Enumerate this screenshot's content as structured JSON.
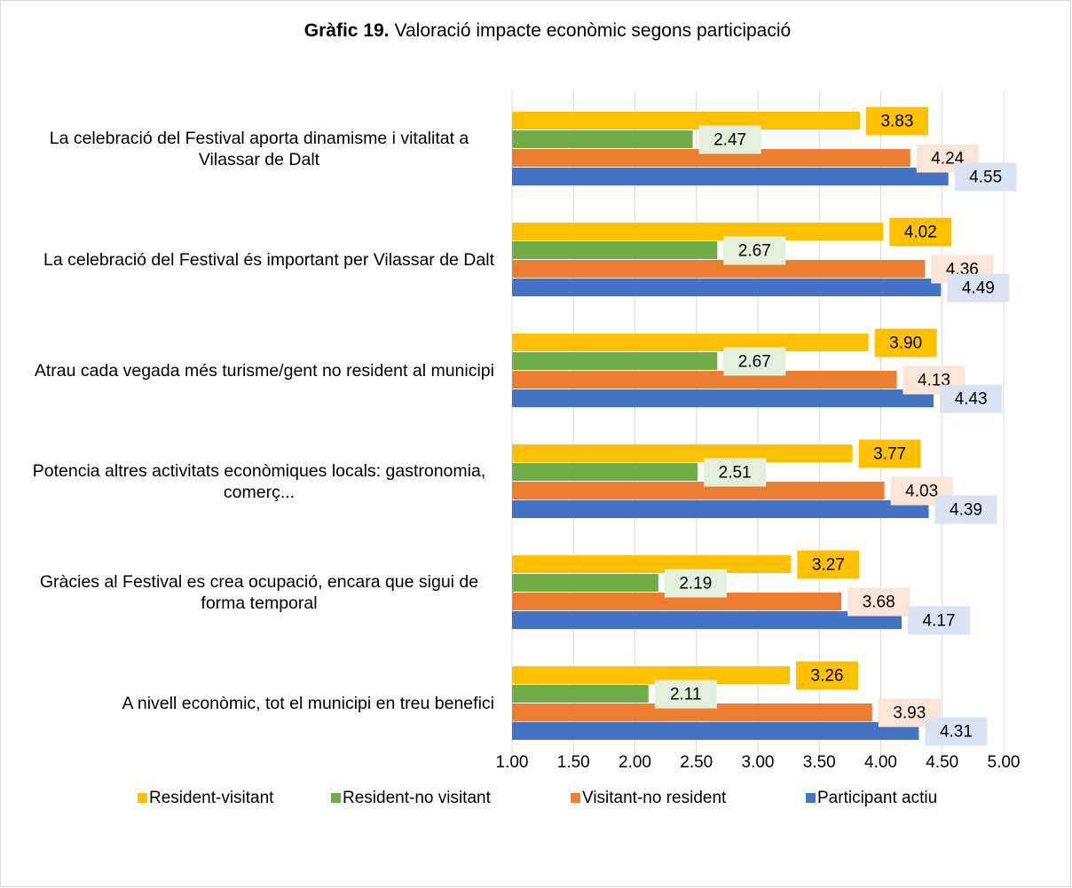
{
  "chart_data": {
    "type": "bar",
    "orientation": "horizontal",
    "title_label": "Gràfic 19.",
    "title": "Valoració impacte econòmic segons participació",
    "categories": [
      "La celebració del Festival aporta dinamisme i vitalitat a Vilassar de Dalt",
      "La celebració del Festival és important per Vilassar de Dalt",
      "Atrau cada vegada més turisme/gent no resident al municipi",
      "Potencia altres activitats econòmiques locals: gastronomia, comerç...",
      "Gràcies al Festival es crea ocupació, encara que sigui de forma temporal",
      "A nivell econòmic, tot el municipi en treu benefici"
    ],
    "series": [
      {
        "name": "Resident-visitant",
        "color": "#ffc000",
        "label_color": "#ffc000",
        "values": [
          3.83,
          4.02,
          3.9,
          3.77,
          3.27,
          3.26
        ],
        "value_labels": [
          "3.83",
          "4.02",
          "3.90",
          "3.77",
          "3.27",
          "3.26"
        ]
      },
      {
        "name": "Resident-no visitant",
        "color": "#70ad47",
        "label_color": "#e2efda",
        "values": [
          2.47,
          2.67,
          2.67,
          2.51,
          2.19,
          2.11
        ],
        "value_labels": [
          "2.47",
          "2.67",
          "2.67",
          "2.51",
          "2.19",
          "2.11"
        ]
      },
      {
        "name": "Visitant-no resident",
        "color": "#ed7d31",
        "label_color": "#fbe5d6",
        "values": [
          4.24,
          4.36,
          4.13,
          4.03,
          3.68,
          3.93
        ],
        "value_labels": [
          "4.24",
          "4.36",
          "4.13",
          "4.03",
          "3.68",
          "3.93"
        ]
      },
      {
        "name": "Participant actiu",
        "color": "#4472c4",
        "label_color": "#dae3f3",
        "values": [
          4.55,
          4.49,
          4.43,
          4.39,
          4.17,
          4.31
        ],
        "value_labels": [
          "4.55",
          "4.49",
          "4.43",
          "4.39",
          "4.17",
          "4.31"
        ]
      }
    ],
    "xlim": [
      1,
      5
    ],
    "xticks": [
      {
        "value": 1,
        "label": "1.00"
      },
      {
        "value": 1.5,
        "label": "1.50"
      },
      {
        "value": 2,
        "label": "2.00"
      },
      {
        "value": 2.5,
        "label": "2.50"
      },
      {
        "value": 3,
        "label": "3.00"
      },
      {
        "value": 3.5,
        "label": "3.50"
      },
      {
        "value": 4,
        "label": "4.00"
      },
      {
        "value": 4.5,
        "label": "4.50"
      },
      {
        "value": 5,
        "label": "5.00"
      }
    ],
    "grid": true,
    "legend": "bottom"
  }
}
